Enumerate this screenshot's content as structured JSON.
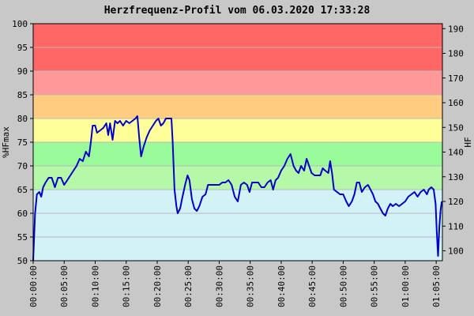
{
  "chart_data": {
    "type": "line",
    "title": "Herzfrequenz-Profil vom 06.03.2020 17:33:28",
    "y_label": "%HFmax",
    "y2_label": "HF",
    "color": "#0000cc",
    "x": [
      0,
      18,
      36,
      60,
      78,
      96,
      120,
      150,
      180,
      210,
      240,
      270,
      300,
      330,
      360,
      390,
      420,
      450,
      480,
      510,
      540,
      558,
      576,
      600,
      618,
      648,
      678,
      708,
      726,
      744,
      768,
      792,
      816,
      840,
      870,
      900,
      930,
      960,
      990,
      1008,
      1026,
      1044,
      1068,
      1098,
      1128,
      1158,
      1188,
      1212,
      1236,
      1260,
      1284,
      1308,
      1338,
      1350,
      1368,
      1386,
      1398,
      1422,
      1440,
      1470,
      1494,
      1512,
      1536,
      1560,
      1584,
      1608,
      1638,
      1668,
      1692,
      1728,
      1770,
      1800,
      1830,
      1860,
      1890,
      1920,
      1950,
      1980,
      2010,
      2040,
      2070,
      2094,
      2118,
      2148,
      2178,
      2208,
      2238,
      2268,
      2298,
      2322,
      2346,
      2370,
      2400,
      2430,
      2460,
      2490,
      2520,
      2544,
      2568,
      2592,
      2622,
      2646,
      2670,
      2694,
      2724,
      2754,
      2778,
      2802,
      2826,
      2856,
      2874,
      2892,
      2910,
      2940,
      2970,
      3000,
      3030,
      3054,
      3084,
      3108,
      3132,
      3156,
      3180,
      3210,
      3240,
      3264,
      3288,
      3312,
      3336,
      3360,
      3384,
      3408,
      3432,
      3456,
      3480,
      3510,
      3540,
      3570,
      3600,
      3630,
      3660,
      3690,
      3720,
      3750,
      3780,
      3810,
      3828,
      3852,
      3876,
      3894,
      3906,
      3918,
      3930,
      3942,
      3954
    ],
    "values": [
      50,
      60,
      64,
      64.5,
      63.5,
      65.5,
      66.5,
      67.5,
      67.5,
      65.5,
      67.5,
      67.5,
      66,
      67,
      68,
      69,
      70,
      71.5,
      71,
      73,
      72,
      75,
      78.5,
      78.5,
      77,
      77.5,
      78,
      79,
      76.5,
      79,
      75.5,
      79.5,
      79,
      79.5,
      78.5,
      79.5,
      79,
      79.5,
      80,
      80.5,
      76,
      72,
      74,
      76,
      77.5,
      78.5,
      79.5,
      80,
      78.5,
      79,
      80,
      80,
      80,
      75,
      65,
      61.5,
      60,
      61,
      63,
      66,
      68,
      67,
      63,
      61,
      60.5,
      61.5,
      63.5,
      64,
      66,
      66,
      66,
      66,
      66.5,
      66.5,
      67,
      66,
      63.5,
      62.5,
      66,
      66.5,
      66,
      64.5,
      66.5,
      66.5,
      66.5,
      65.5,
      65.5,
      66.5,
      67,
      65,
      67,
      67.5,
      69,
      70,
      71.5,
      72.5,
      70,
      69,
      68.5,
      70,
      69,
      71.5,
      70,
      68.5,
      68,
      68,
      68,
      69.5,
      69,
      68.5,
      71,
      68.5,
      65,
      64.5,
      64,
      64,
      62.5,
      61.5,
      62.5,
      64,
      66.5,
      66.5,
      64.5,
      65.5,
      66,
      65,
      64,
      62.5,
      62,
      61,
      60,
      59.5,
      61,
      62,
      61.5,
      62,
      61.5,
      62,
      62.5,
      63.5,
      64,
      64.5,
      63.5,
      64.5,
      65,
      64,
      65,
      65.5,
      65,
      62,
      56,
      51,
      57,
      60.5,
      62.5
    ],
    "xlim": [
      0,
      3960
    ],
    "xticks": [
      {
        "value": 0,
        "label": "00:00:00"
      },
      {
        "value": 300,
        "label": "00:05:00"
      },
      {
        "value": 600,
        "label": "00:10:00"
      },
      {
        "value": 900,
        "label": "00:15:00"
      },
      {
        "value": 1200,
        "label": "00:20:00"
      },
      {
        "value": 1500,
        "label": "00:25:00"
      },
      {
        "value": 1800,
        "label": "00:30:00"
      },
      {
        "value": 2100,
        "label": "00:35:00"
      },
      {
        "value": 2400,
        "label": "00:40:00"
      },
      {
        "value": 2700,
        "label": "00:45:00"
      },
      {
        "value": 3000,
        "label": "00:50:00"
      },
      {
        "value": 3300,
        "label": "00:55:00"
      },
      {
        "value": 3600,
        "label": "01:00:00"
      },
      {
        "value": 3900,
        "label": "01:05:00"
      }
    ],
    "ylim": [
      50,
      100
    ],
    "yticks": [
      50,
      55,
      60,
      65,
      70,
      75,
      80,
      85,
      90,
      95,
      100
    ],
    "y2lim": [
      96,
      192
    ],
    "y2ticks": [
      100,
      110,
      120,
      130,
      140,
      150,
      160,
      170,
      180,
      190
    ],
    "grid": true,
    "bands": [
      {
        "from": 50,
        "to": 65,
        "color": "#d2f2f8"
      },
      {
        "from": 65,
        "to": 70,
        "color": "#b4f8a8"
      },
      {
        "from": 70,
        "to": 75,
        "color": "#98fa98"
      },
      {
        "from": 75,
        "to": 80,
        "color": "#ffff99"
      },
      {
        "from": 80,
        "to": 85,
        "color": "#ffcc80"
      },
      {
        "from": 85,
        "to": 90,
        "color": "#ff9898"
      },
      {
        "from": 90,
        "to": 100,
        "color": "#ff6666"
      }
    ]
  }
}
